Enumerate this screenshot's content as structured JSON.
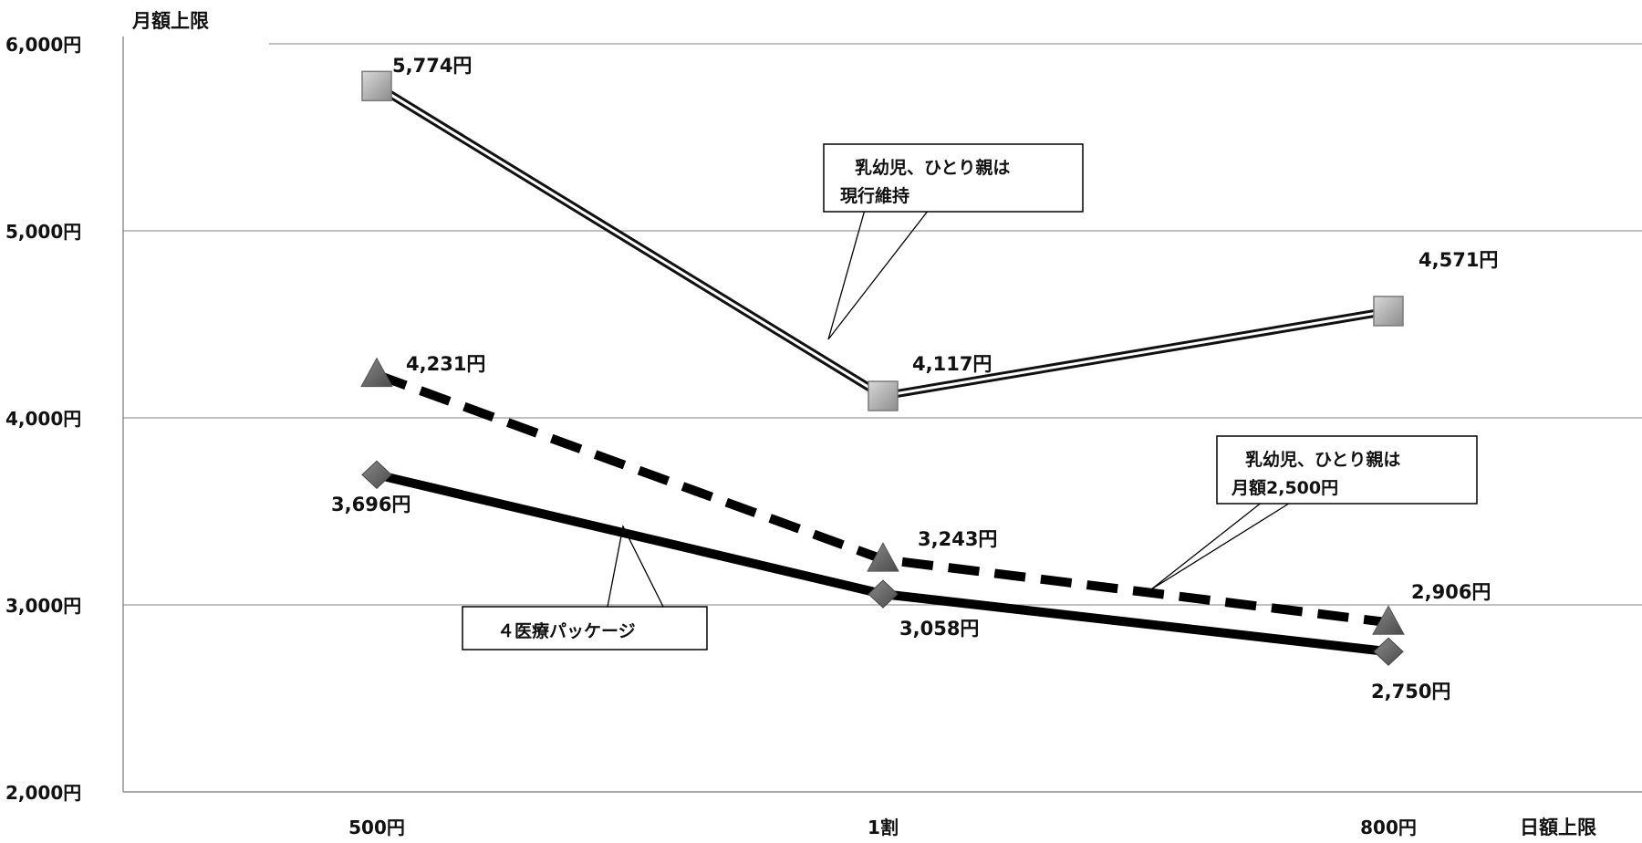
{
  "chart_data": {
    "type": "line",
    "categories": [
      "500円",
      "1割",
      "800円"
    ],
    "x_axis_title": "日額上限",
    "y_axis_title": "月額上限",
    "ylim": [
      2000,
      6000
    ],
    "yticks": [
      2000,
      3000,
      4000,
      5000,
      6000
    ],
    "ytick_labels": [
      "2,000円",
      "3,000円",
      "4,000円",
      "5,000円",
      "6,000円"
    ],
    "grid": "horizontal",
    "series": [
      {
        "values": [
          5774,
          4117,
          4571
        ],
        "labels": [
          "5,774円",
          "4,117円",
          "4,571円"
        ],
        "line_style": "double",
        "marker": "square",
        "color": "#999999"
      },
      {
        "values": [
          4231,
          3243,
          2906
        ],
        "labels": [
          "4,231円",
          "3,243円",
          "2,906円"
        ],
        "line_style": "dashed",
        "marker": "triangle",
        "color": "#6e6e6e"
      },
      {
        "values": [
          3696,
          3058,
          2750
        ],
        "labels": [
          "3,696円",
          "3,058円",
          "2,750円"
        ],
        "line_style": "solid-thick",
        "marker": "diamond",
        "color": "#666666"
      }
    ],
    "annotations": [
      {
        "lines": [
          "乳幼児、ひとり親は",
          "現行維持"
        ]
      },
      {
        "lines": [
          "乳幼児、ひとり親は",
          "月額2,500円"
        ]
      },
      {
        "lines": [
          "４医療パッケージ"
        ]
      }
    ]
  }
}
